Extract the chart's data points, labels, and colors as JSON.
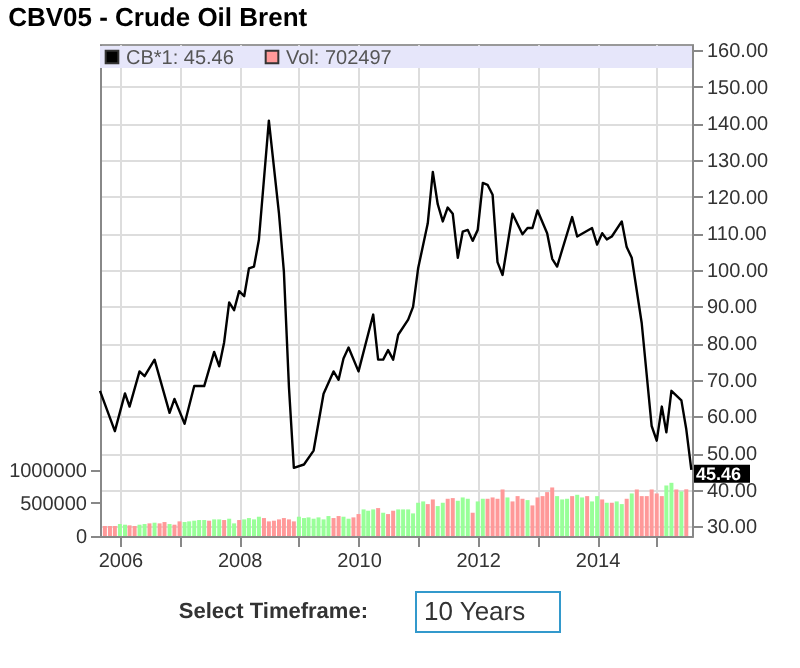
{
  "chart_data": {
    "type": "line",
    "title": "CBV05 - Crude Oil Brent",
    "legend": "top left",
    "grid": true,
    "xlim": [
      "2005-09-01",
      "2015-08-05"
    ],
    "xticks": [
      "2006",
      {
        "value": "2007",
        "label": null
      },
      "2008",
      {
        "value": "2009",
        "label": null
      },
      "2010",
      {
        "value": "2011",
        "label": null
      },
      "2012",
      {
        "value": "2013",
        "label": null
      },
      "2014",
      {
        "value": "2015",
        "label": null
      }
    ],
    "ylim": [
      0,
      7400000
    ],
    "yticks": [
      0,
      500000,
      1000000
    ],
    "y2lim": [
      27.4,
      161.6
    ],
    "y2ticks": [
      {
        "value": 30,
        "label": "30.00"
      },
      {
        "value": 40,
        "label": "40.00"
      },
      {
        "value": 50,
        "label": "50.00"
      },
      {
        "value": 60,
        "label": "60.00"
      },
      {
        "value": 70,
        "label": "70.00"
      },
      {
        "value": 80,
        "label": "80.00"
      },
      {
        "value": 90,
        "label": "90.00"
      },
      {
        "value": 100,
        "label": "100.00"
      },
      {
        "value": 110,
        "label": "110.00"
      },
      {
        "value": 120,
        "label": "120.00"
      },
      {
        "value": 130,
        "label": "130.00"
      },
      {
        "value": 140,
        "label": "140.00"
      },
      {
        "value": 150,
        "label": "150.00"
      },
      {
        "value": 160,
        "label": "160.00"
      }
    ],
    "series": [
      {
        "name": "Vol: 702497",
        "type": "bar",
        "color": "#ff9999",
        "x": [
          "2005-10",
          "2005-11",
          "2005-12",
          "2006-01",
          "2006-02",
          "2006-03",
          "2006-04",
          "2006-05",
          "2006-06",
          "2006-07",
          "2006-08",
          "2006-09",
          "2006-10",
          "2006-11",
          "2006-12",
          "2007-01",
          "2007-02",
          "2007-03",
          "2007-04",
          "2007-05",
          "2007-06",
          "2007-07",
          "2007-08",
          "2007-09",
          "2007-10",
          "2007-11",
          "2007-12",
          "2008-01",
          "2008-02",
          "2008-03",
          "2008-04",
          "2008-05",
          "2008-06",
          "2008-07",
          "2008-08",
          "2008-09",
          "2008-10",
          "2008-11",
          "2008-12",
          "2009-01",
          "2009-02",
          "2009-03",
          "2009-04",
          "2009-05",
          "2009-06",
          "2009-07",
          "2009-08",
          "2009-09",
          "2009-10",
          "2009-11",
          "2009-12",
          "2010-01",
          "2010-02",
          "2010-03",
          "2010-04",
          "2010-05",
          "2010-06",
          "2010-07",
          "2010-08",
          "2010-09",
          "2010-10",
          "2010-11",
          "2010-12",
          "2011-01",
          "2011-02",
          "2011-03",
          "2011-04",
          "2011-05",
          "2011-06",
          "2011-07",
          "2011-08",
          "2011-09",
          "2011-10",
          "2011-11",
          "2011-12",
          "2012-01",
          "2012-02",
          "2012-03",
          "2012-04",
          "2012-05",
          "2012-06",
          "2012-07",
          "2012-08",
          "2012-09",
          "2012-10",
          "2012-11",
          "2012-12",
          "2013-01",
          "2013-02",
          "2013-03",
          "2013-04",
          "2013-05",
          "2013-06",
          "2013-07",
          "2013-08",
          "2013-09",
          "2013-10",
          "2013-11",
          "2013-12",
          "2014-01",
          "2014-02",
          "2014-03",
          "2014-04",
          "2014-05",
          "2014-06",
          "2014-07",
          "2014-08",
          "2014-09",
          "2014-10",
          "2014-11",
          "2014-12",
          "2015-01",
          "2015-02",
          "2015-03",
          "2015-04",
          "2015-05",
          "2015-06",
          "2015-07"
        ],
        "values": [
          150000,
          150000,
          150000,
          180000,
          170000,
          160000,
          150000,
          170000,
          180000,
          190000,
          200000,
          190000,
          210000,
          180000,
          170000,
          220000,
          210000,
          220000,
          230000,
          240000,
          240000,
          230000,
          250000,
          250000,
          240000,
          260000,
          190000,
          240000,
          250000,
          270000,
          250000,
          290000,
          270000,
          220000,
          230000,
          250000,
          270000,
          250000,
          220000,
          290000,
          270000,
          280000,
          260000,
          280000,
          250000,
          300000,
          270000,
          300000,
          290000,
          260000,
          280000,
          330000,
          400000,
          380000,
          400000,
          420000,
          350000,
          330000,
          380000,
          400000,
          400000,
          400000,
          340000,
          500000,
          520000,
          480000,
          550000,
          450000,
          500000,
          560000,
          570000,
          530000,
          580000,
          560000,
          350000,
          520000,
          560000,
          560000,
          580000,
          560000,
          700000,
          580000,
          520000,
          600000,
          560000,
          540000,
          460000,
          580000,
          600000,
          660000,
          730000,
          600000,
          550000,
          560000,
          600000,
          620000,
          580000,
          600000,
          520000,
          600000,
          550000,
          500000,
          500000,
          520000,
          480000,
          560000,
          640000,
          700000,
          600000,
          600000,
          700000,
          640000,
          600000,
          760000,
          800000,
          700000,
          670000,
          702497
        ],
        "colors": [
          "#ff9999",
          "#ff9999",
          "#ff9999",
          "#99ff99",
          "#99ff99",
          "#ff9999",
          "#ff9999",
          "#99ff99",
          "#99ff99",
          "#ff9999",
          "#99ff99",
          "#ff9999",
          "#ff9999",
          "#99ff99",
          "#ff9999",
          "#ff9999",
          "#99ff99",
          "#99ff99",
          "#99ff99",
          "#99ff99",
          "#99ff99",
          "#ff9999",
          "#99ff99",
          "#99ff99",
          "#ff9999",
          "#99ff99",
          "#99ff99",
          "#ff9999",
          "#99ff99",
          "#99ff99",
          "#99ff99",
          "#99ff99",
          "#ff9999",
          "#ff9999",
          "#ff9999",
          "#ff9999",
          "#ff9999",
          "#ff9999",
          "#ff9999",
          "#99ff99",
          "#99ff99",
          "#99ff99",
          "#99ff99",
          "#99ff99",
          "#99ff99",
          "#99ff99",
          "#ff9999",
          "#ff9999",
          "#99ff99",
          "#99ff99",
          "#ff9999",
          "#ff9999",
          "#99ff99",
          "#99ff99",
          "#99ff99",
          "#ff9999",
          "#99ff99",
          "#ff9999",
          "#ff9999",
          "#99ff99",
          "#99ff99",
          "#99ff99",
          "#99ff99",
          "#99ff99",
          "#99ff99",
          "#ff9999",
          "#ff9999",
          "#99ff99",
          "#99ff99",
          "#ff9999",
          "#ff9999",
          "#99ff99",
          "#99ff99",
          "#99ff99",
          "#ff9999",
          "#99ff99",
          "#99ff99",
          "#ff9999",
          "#ff9999",
          "#ff9999",
          "#ff9999",
          "#99ff99",
          "#ff9999",
          "#ff9999",
          "#ff9999",
          "#99ff99",
          "#ff9999",
          "#ff9999",
          "#ff9999",
          "#ff9999",
          "#ff9999",
          "#99ff99",
          "#99ff99",
          "#99ff99",
          "#ff9999",
          "#99ff99",
          "#99ff99",
          "#ff9999",
          "#99ff99",
          "#99ff99",
          "#ff9999",
          "#99ff99",
          "#ff9999",
          "#99ff99",
          "#99ff99",
          "#ff9999",
          "#99ff99",
          "#ff9999",
          "#ff9999",
          "#ff9999",
          "#ff9999",
          "#ff9999",
          "#ff9999",
          "#99ff99",
          "#99ff99",
          "#ff9999",
          "#99ff99",
          "#ff9999"
        ]
      },
      {
        "name": "CB*1: 45.46",
        "axis": "y2",
        "color": "#000000",
        "x": [
          "2005-09",
          "2005-12",
          "2006-02",
          "2006-03",
          "2006-05",
          "2006-06",
          "2006-08",
          "2006-11",
          "2006-12",
          "2007-02",
          "2007-04",
          "2007-06",
          "2007-08",
          "2007-09",
          "2007-10",
          "2007-11",
          "2007-12",
          "2008-01",
          "2008-02",
          "2008-03",
          "2008-04",
          "2008-05",
          "2008-07",
          "2008-09",
          "2008-10",
          "2008-11",
          "2008-12",
          "2009-02",
          "2009-04",
          "2009-06",
          "2009-08",
          "2009-09",
          "2009-10",
          "2009-11",
          "2010-01",
          "2010-04",
          "2010-05",
          "2010-06",
          "2010-07",
          "2010-08",
          "2010-09",
          "2010-11",
          "2010-12",
          "2011-01",
          "2011-03",
          "2011-04",
          "2011-05",
          "2011-06",
          "2011-07",
          "2011-08",
          "2011-09",
          "2011-10",
          "2011-11",
          "2011-12",
          "2012-01",
          "2012-02",
          "2012-03",
          "2012-04",
          "2012-05",
          "2012-06",
          "2012-08",
          "2012-10",
          "2012-11",
          "2012-12",
          "2013-01",
          "2013-03",
          "2013-04",
          "2013-05",
          "2013-08",
          "2013-09",
          "2013-12",
          "2014-01",
          "2014-02",
          "2014-03",
          "2014-04",
          "2014-06",
          "2014-07",
          "2014-08",
          "2014-10",
          "2014-12",
          "2015-01",
          "2015-02",
          "2015-03",
          "2015-04",
          "2015-06",
          "2015-07",
          "2015-08"
        ],
        "values": [
          67,
          56,
          66.3,
          62.7,
          72.3,
          71,
          75.5,
          61,
          64.8,
          58,
          68.3,
          68.3,
          77.6,
          73.7,
          80.2,
          91.1,
          89,
          94.2,
          92.8,
          100.4,
          100.9,
          108.2,
          140.7,
          115.3,
          99.5,
          68,
          46,
          46.9,
          50.7,
          66.2,
          72.3,
          70,
          75.8,
          78.8,
          72.3,
          87.8,
          75.5,
          75.5,
          78.1,
          75.5,
          82.3,
          86.4,
          89.9,
          100.4,
          112.7,
          126.7,
          117.9,
          113.2,
          117,
          115.3,
          103.3,
          110.4,
          110.9,
          107.9,
          110.9,
          123.7,
          123.2,
          120.5,
          102.1,
          98.6,
          115.3,
          109.7,
          111.4,
          111.4,
          116.2,
          110,
          103,
          100.9,
          114.4,
          109.1,
          111.4,
          106.9,
          110,
          108.3,
          109.1,
          113.2,
          106.2,
          103.3,
          85.5,
          57.4,
          53.4,
          62.7,
          55.7,
          67,
          64.4,
          56.5,
          45.46
        ]
      }
    ],
    "annotations": [
      {
        "text": "45.46",
        "x": "2015-08-05",
        "y": 45.46
      },
      "Select Timeframe:",
      "10 Years"
    ]
  }
}
